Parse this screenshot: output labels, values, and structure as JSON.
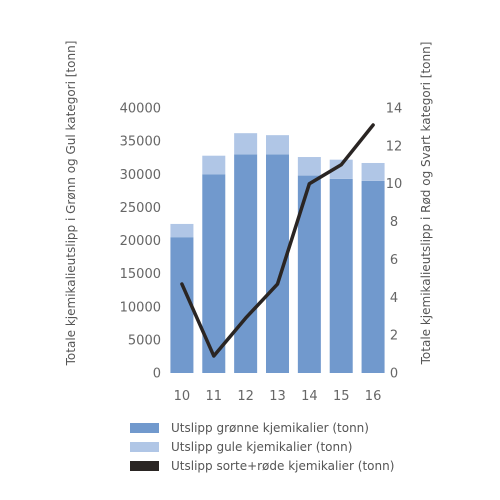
{
  "chart_data": {
    "type": "bar",
    "categories": [
      "10",
      "11",
      "12",
      "13",
      "14",
      "15",
      "16"
    ],
    "series": [
      {
        "name": "Utslipp grønne kjemikalier (tonn)",
        "type": "bar",
        "axis": "left",
        "color": "#7199cd",
        "values": [
          20500,
          30000,
          33000,
          33000,
          29800,
          29300,
          29000
        ]
      },
      {
        "name": "Utslipp gule kjemikalier (tonn)",
        "type": "bar",
        "axis": "left",
        "color": "#b0c6e6",
        "values": [
          2000,
          2800,
          3200,
          2900,
          2800,
          2900,
          2700
        ]
      },
      {
        "name": "Utslipp sorte+røde kjemikalier (tonn)",
        "type": "line",
        "axis": "right",
        "color": "#2a2523",
        "values": [
          4.7,
          0.9,
          2.9,
          4.7,
          10.0,
          11.0,
          13.1
        ]
      }
    ],
    "stacked": true,
    "ylabel": "Totale kjemikalieutslipp i Grønn og Gul kategori [tonn]",
    "y2label": "Totale kjemikalieutslipp i Rød og Svart kategori [tonn]",
    "ylim": [
      0,
      40000
    ],
    "yticks": [
      "0",
      "5000",
      "10000",
      "15000",
      "20000",
      "25000",
      "30000",
      "35000",
      "40000"
    ],
    "y2lim": [
      0,
      14
    ],
    "y2ticks": [
      "0",
      "2",
      "4",
      "6",
      "8",
      "10",
      "12",
      "14"
    ],
    "grid": false,
    "legend_position": "bottom"
  }
}
